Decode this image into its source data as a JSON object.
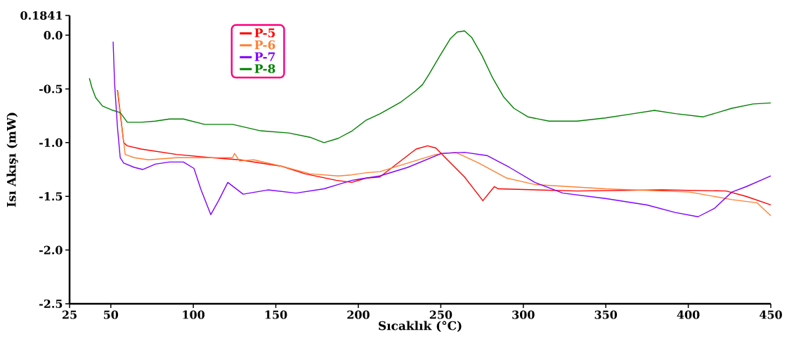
{
  "chart_data": {
    "type": "line",
    "xlabel": "Sıcaklık (°C)",
    "ylabel": "Isı Akışı (mW)",
    "xlim": [
      25,
      450
    ],
    "xticks": [
      25,
      50,
      100,
      150,
      200,
      250,
      300,
      350,
      400,
      450
    ],
    "ylim": [
      -2.5,
      0.1841
    ],
    "yticks": [
      {
        "value": -2.5,
        "label": "-2.5"
      },
      {
        "value": -2.0,
        "label": "-2.0"
      },
      {
        "value": -1.5,
        "label": "-1.5"
      },
      {
        "value": -1.0,
        "label": "-1.0"
      },
      {
        "value": -0.5,
        "label": "-0.5"
      },
      {
        "value": 0,
        "label": "0.0"
      },
      {
        "value": 0.1841,
        "label": "0.1841"
      }
    ],
    "grid": false,
    "legend": "top left",
    "marker": "none",
    "line_style": "solid",
    "series": [
      {
        "name": "P-5",
        "color": "#ff0000",
        "x": [
          54,
          57.8,
          60,
          68.5,
          89.8,
          111,
          128,
          153.7,
          167.7,
          186.5,
          196,
          204.8,
          213,
          235,
          242,
          247,
          254,
          264.4,
          275.5,
          282.4,
          284.9,
          332.6,
          383.8,
          423,
          435,
          450
        ],
        "values": [
          -0.51,
          -1.0,
          -1.03,
          -1.06,
          -1.11,
          -1.14,
          -1.16,
          -1.22,
          -1.29,
          -1.35,
          -1.37,
          -1.33,
          -1.32,
          -1.06,
          -1.03,
          -1.05,
          -1.16,
          -1.32,
          -1.54,
          -1.41,
          -1.43,
          -1.45,
          -1.44,
          -1.45,
          -1.5,
          -1.58
        ]
      },
      {
        "name": "P-6",
        "color": "#ff8033",
        "x": [
          54.3,
          58.7,
          64.2,
          72.7,
          89.8,
          123.8,
          125,
          128,
          136.6,
          153.7,
          170.7,
          187.8,
          196,
          204.8,
          213,
          230,
          247,
          259,
          273,
          290,
          307,
          349.7,
          400.8,
          426.4,
          441.7,
          450
        ],
        "values": [
          -0.52,
          -1.11,
          -1.14,
          -1.16,
          -1.14,
          -1.14,
          -1.1,
          -1.17,
          -1.16,
          -1.22,
          -1.29,
          -1.31,
          -1.3,
          -1.28,
          -1.27,
          -1.19,
          -1.11,
          -1.09,
          -1.19,
          -1.33,
          -1.39,
          -1.43,
          -1.46,
          -1.53,
          -1.56,
          -1.68
        ]
      },
      {
        "name": "P-7",
        "color": "#8000ff",
        "x": [
          51.4,
          52.3,
          54,
          55.7,
          57.8,
          64.2,
          69.3,
          77,
          85.5,
          94,
          100.4,
          104.7,
          110.6,
          115.3,
          120.9,
          130.2,
          145.2,
          162.2,
          179.2,
          187.8,
          196.3,
          213,
          230,
          250.5,
          264.4,
          278,
          291.6,
          307,
          324,
          349.7,
          375,
          392,
          405.9,
          416,
          426.4,
          435,
          450
        ],
        "values": [
          -0.06,
          -0.45,
          -0.85,
          -1.14,
          -1.19,
          -1.23,
          -1.25,
          -1.2,
          -1.18,
          -1.18,
          -1.24,
          -1.44,
          -1.67,
          -1.54,
          -1.37,
          -1.48,
          -1.44,
          -1.47,
          -1.43,
          -1.39,
          -1.35,
          -1.31,
          -1.23,
          -1.1,
          -1.09,
          -1.12,
          -1.23,
          -1.37,
          -1.47,
          -1.52,
          -1.58,
          -1.65,
          -1.69,
          -1.61,
          -1.46,
          -1.41,
          -1.31
        ]
      },
      {
        "name": "P-8",
        "color": "#008000",
        "x": [
          37,
          38.6,
          40.8,
          45,
          51.4,
          55.7,
          60,
          68.5,
          77,
          85.5,
          94,
          106.8,
          123.8,
          140.9,
          157.9,
          170.7,
          179.2,
          187.8,
          196.3,
          204.8,
          213.3,
          226,
          234.6,
          238.9,
          243,
          249.5,
          255.9,
          260,
          264.4,
          268.7,
          275,
          281.5,
          287.9,
          294.3,
          302.8,
          315.6,
          324,
          332.6,
          349.7,
          366.8,
          379.5,
          392.3,
          409,
          426.4,
          439.2,
          450
        ],
        "values": [
          -0.4,
          -0.49,
          -0.58,
          -0.66,
          -0.7,
          -0.72,
          -0.81,
          -0.81,
          -0.8,
          -0.78,
          -0.78,
          -0.83,
          -0.83,
          -0.89,
          -0.91,
          -0.95,
          -1.0,
          -0.96,
          -0.89,
          -0.79,
          -0.73,
          -0.62,
          -0.52,
          -0.46,
          -0.36,
          -0.19,
          -0.03,
          0.03,
          0.04,
          -0.02,
          -0.19,
          -0.4,
          -0.57,
          -0.68,
          -0.76,
          -0.8,
          -0.8,
          -0.8,
          -0.77,
          -0.73,
          -0.7,
          -0.73,
          -0.76,
          -0.68,
          -0.64,
          -0.63
        ]
      }
    ]
  }
}
